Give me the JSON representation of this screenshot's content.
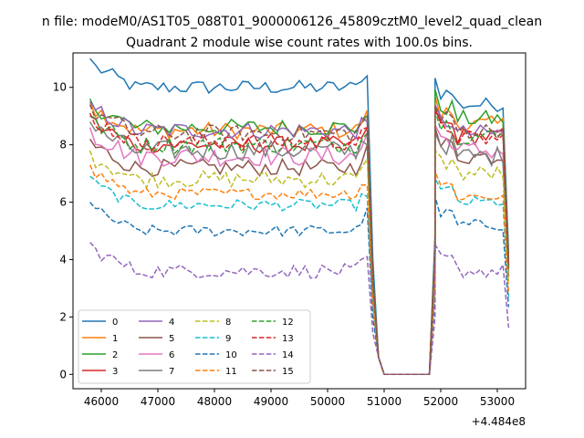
{
  "chart_data": {
    "type": "line",
    "suptitle": "n file: modeM0/AS1T05_088T01_9000006126_45809cztM0_level2_quad_clean",
    "title": "Quadrant 2 module wise count rates with 100.0s bins.",
    "xlabel": "",
    "ylabel": "",
    "x_offset_label": "+4.484e8",
    "xlim": [
      45500,
      53500
    ],
    "ylim": [
      -0.5,
      11.2
    ],
    "xticks": [
      "46000",
      "47000",
      "48000",
      "49000",
      "50000",
      "51000",
      "52000",
      "53000"
    ],
    "yticks": [
      "0",
      "2",
      "4",
      "6",
      "8",
      "10"
    ],
    "grid": false,
    "legend": {
      "placement": "lower-left",
      "columns": 4
    },
    "x": {
      "segment1": {
        "start": 45800,
        "end": 50700,
        "step": 100
      },
      "gap": [
        50800,
        50900,
        51000,
        51100,
        51200,
        51300,
        51400,
        51500,
        51600,
        51700,
        51800
      ],
      "segment2": {
        "start": 51900,
        "end": 53200,
        "step": 100
      }
    },
    "series": [
      {
        "name": "0",
        "color": "#1f77b4",
        "dash": "solid",
        "level1": 10.0,
        "level2": 9.4,
        "peak": 10.4,
        "noise": 0.25
      },
      {
        "name": "1",
        "color": "#ff7f0e",
        "dash": "solid",
        "level1": 8.5,
        "level2": 8.7,
        "peak": 9.2,
        "noise": 0.3
      },
      {
        "name": "2",
        "color": "#2ca02c",
        "dash": "solid",
        "level1": 8.6,
        "level2": 8.9,
        "peak": 9.0,
        "noise": 0.3
      },
      {
        "name": "3",
        "color": "#d62728",
        "dash": "solid",
        "level1": 8.0,
        "level2": 8.3,
        "peak": 8.6,
        "noise": 0.3
      },
      {
        "name": "4",
        "color": "#9467bd",
        "dash": "solid",
        "level1": 8.5,
        "level2": 8.4,
        "peak": 8.8,
        "noise": 0.3
      },
      {
        "name": "5",
        "color": "#8c564b",
        "dash": "solid",
        "level1": 7.2,
        "level2": 7.6,
        "peak": 8.0,
        "noise": 0.3
      },
      {
        "name": "6",
        "color": "#e377c2",
        "dash": "solid",
        "level1": 7.6,
        "level2": 7.8,
        "peak": 8.4,
        "noise": 0.35
      },
      {
        "name": "7",
        "color": "#7f7f7f",
        "dash": "solid",
        "level1": 7.8,
        "level2": 7.6,
        "peak": 8.0,
        "noise": 0.35
      },
      {
        "name": "8",
        "color": "#bcbd22",
        "dash": "dashed",
        "level1": 6.8,
        "level2": 7.0,
        "peak": 7.5,
        "noise": 0.3
      },
      {
        "name": "9",
        "color": "#17becf",
        "dash": "dashed",
        "level1": 5.9,
        "level2": 6.0,
        "peak": 6.2,
        "noise": 0.2
      },
      {
        "name": "10",
        "color": "#1f77b4",
        "dash": "dashed",
        "level1": 5.0,
        "level2": 5.2,
        "peak": 5.8,
        "noise": 0.2
      },
      {
        "name": "11",
        "color": "#ff7f0e",
        "dash": "dashed",
        "level1": 6.3,
        "level2": 6.2,
        "peak": 6.6,
        "noise": 0.2
      },
      {
        "name": "12",
        "color": "#2ca02c",
        "dash": "dashed",
        "level1": 8.0,
        "level2": 8.3,
        "peak": 8.4,
        "noise": 0.3
      },
      {
        "name": "13",
        "color": "#d62728",
        "dash": "dashed",
        "level1": 8.1,
        "level2": 8.2,
        "peak": 8.6,
        "noise": 0.3
      },
      {
        "name": "14",
        "color": "#9467bd",
        "dash": "dashed",
        "level1": 3.6,
        "level2": 3.6,
        "peak": 4.1,
        "noise": 0.25
      },
      {
        "name": "15",
        "color": "#8c564b",
        "dash": "dashed",
        "level1": 8.4,
        "level2": 8.5,
        "peak": 9.0,
        "noise": 0.3
      }
    ]
  }
}
